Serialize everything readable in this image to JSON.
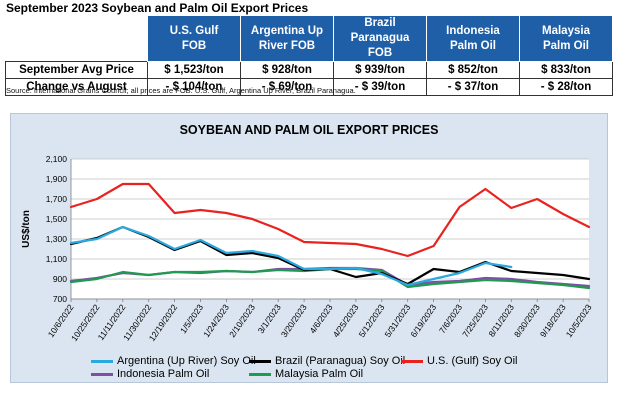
{
  "table": {
    "title": "September 2023 Soybean and Palm Oil Export Prices",
    "headers": [
      "U.S. Gulf FOB",
      "Argentina Up River FOB",
      "Brazil Paranagua FOB",
      "Indonesia Palm Oil",
      "Malaysia Palm Oil"
    ],
    "header_lines": [
      [
        "U.S. Gulf",
        "FOB"
      ],
      [
        "Argentina Up",
        "River FOB"
      ],
      [
        "Brazil Paranagua",
        "FOB"
      ],
      [
        "Indonesia",
        "Palm Oil"
      ],
      [
        "Malaysia",
        "Palm Oil"
      ]
    ],
    "rows": [
      {
        "label": "September Avg Price",
        "values": [
          "$ 1,523/ton",
          "$ 928/ton",
          "$ 939/ton",
          "$ 852/ton",
          "$ 833/ton"
        ]
      },
      {
        "label": "Change vs August",
        "values": [
          "- $ 104/ton",
          "- $ 69/ton",
          "- $ 39/ton",
          "- $ 37/ton",
          "- $ 28/ton"
        ]
      }
    ],
    "source": "Source: International Grains Council; all prices are FOB: U.S. Gulf, Argentina Up River, Brazil Paranagua."
  },
  "chart_data": {
    "type": "line",
    "title": "SOYBEAN AND PALM OIL EXPORT PRICES",
    "ylabel": "US$/ton",
    "xlabel": "",
    "ylim": [
      700,
      2100
    ],
    "yticks": [
      700,
      900,
      1100,
      1300,
      1500,
      1700,
      1900,
      2100
    ],
    "ytick_labels": [
      "700",
      "900",
      "1,100",
      "1,300",
      "1,500",
      "1,700",
      "1,900",
      "2,100"
    ],
    "x_tick_labels": [
      "10/6/2022",
      "10/25/2022",
      "11/11/2022",
      "11/30/2022",
      "12/19/2022",
      "1/5/2023",
      "1/24/2023",
      "2/10/2023",
      "3/1/2023",
      "3/20/2023",
      "4/6/2023",
      "4/25/2023",
      "5/12/2023",
      "5/31/2023",
      "6/19/2023",
      "7/6/2023",
      "7/25/2023",
      "8/11/2023",
      "8/30/2023",
      "9/18/2023",
      "10/5/2023"
    ],
    "series": [
      {
        "name": "Argentina (Up River) Soy Oil",
        "color": "#2aa8e0",
        "values": [
          1260,
          1300,
          1420,
          1330,
          1200,
          1290,
          1160,
          1180,
          1130,
          1000,
          1000,
          1010,
          950,
          840,
          900,
          960,
          1060,
          1020,
          null,
          null,
          null
        ]
      },
      {
        "name": "Brazil (Paranagua) Soy Oil",
        "color": "#000000",
        "values": [
          1250,
          1310,
          1420,
          1320,
          1190,
          1280,
          1140,
          1160,
          1110,
          990,
          1000,
          920,
          960,
          850,
          1000,
          970,
          1070,
          980,
          960,
          940,
          900
        ]
      },
      {
        "name": "U.S. (Gulf) Soy Oil",
        "color": "#e8231f",
        "values": [
          1620,
          1700,
          1850,
          1850,
          1560,
          1590,
          1560,
          1500,
          1400,
          1270,
          1260,
          1250,
          1200,
          1130,
          1230,
          1620,
          1800,
          1610,
          1700,
          1550,
          1420
        ]
      },
      {
        "name": "Indonesia Palm Oil",
        "color": "#7f4fa6",
        "values": [
          880,
          910,
          960,
          940,
          970,
          960,
          980,
          970,
          1000,
          1000,
          1010,
          1010,
          990,
          840,
          870,
          880,
          910,
          900,
          870,
          850,
          830
        ]
      },
      {
        "name": "Malaysia Palm Oil",
        "color": "#1f9b4f",
        "values": [
          870,
          900,
          970,
          940,
          970,
          970,
          980,
          970,
          990,
          980,
          1000,
          1000,
          980,
          820,
          850,
          870,
          890,
          880,
          860,
          840,
          810
        ]
      }
    ]
  }
}
